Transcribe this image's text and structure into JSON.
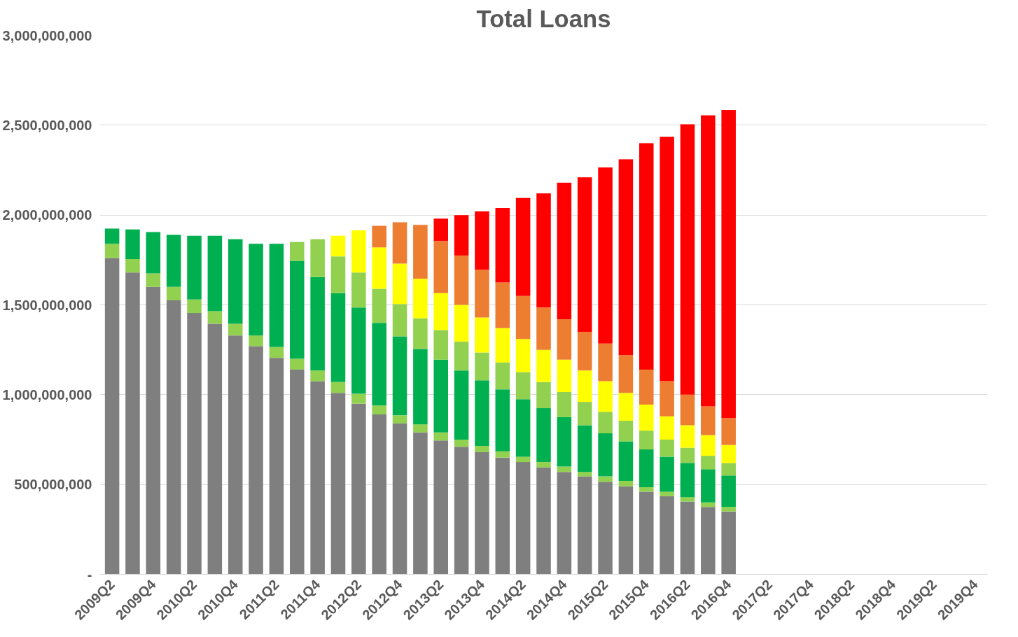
{
  "chart_data": {
    "type": "bar",
    "title": "Total Loans",
    "stacked": true,
    "grid": "y",
    "categories": [
      "2009Q2",
      null,
      "2009Q4",
      null,
      "2010Q2",
      null,
      "2010Q4",
      null,
      "2011Q2",
      null,
      "2011Q4",
      null,
      "2012Q2",
      null,
      "2012Q4",
      null,
      "2013Q2",
      null,
      "2013Q4",
      null,
      "2014Q2",
      null,
      "2014Q4",
      null,
      "2015Q2",
      null,
      "2015Q4",
      null,
      "2016Q2",
      null,
      "2016Q4",
      null,
      "2017Q2",
      null,
      "2017Q4",
      null,
      "2018Q2",
      null,
      "2018Q4",
      null,
      "2019Q2",
      null,
      "2019Q4"
    ],
    "ylim": [
      0,
      3000000000
    ],
    "yticks": [
      {
        "value": 0,
        "label": "-"
      },
      {
        "value": 500000000,
        "label": "500,000,000"
      },
      {
        "value": 1000000000,
        "label": "1,000,000,000"
      },
      {
        "value": 1500000000,
        "label": "1,500,000,000"
      },
      {
        "value": 2000000000,
        "label": "2,000,000,000"
      },
      {
        "value": 2500000000,
        "label": "2,500,000,000"
      },
      {
        "value": 3000000000,
        "label": "3,000,000,000"
      }
    ],
    "series": [
      {
        "color": "#7f7f7f",
        "values": [
          1760000000,
          1680000000,
          1600000000,
          1525000000,
          1455000000,
          1395000000,
          1330000000,
          1270000000,
          1205000000,
          1140000000,
          1075000000,
          1010000000,
          950000000,
          890000000,
          840000000,
          790000000,
          745000000,
          710000000,
          680000000,
          650000000,
          625000000,
          595000000,
          570000000,
          545000000,
          515000000,
          490000000,
          460000000,
          435000000,
          405000000,
          375000000,
          350000000,
          null,
          null,
          null,
          null,
          null,
          null,
          null,
          null,
          null,
          null,
          null,
          null
        ]
      },
      {
        "color": "#92d050",
        "values": [
          80000000,
          75000000,
          75000000,
          75000000,
          75000000,
          70000000,
          65000000,
          60000000,
          60000000,
          60000000,
          60000000,
          60000000,
          55000000,
          50000000,
          45000000,
          45000000,
          45000000,
          40000000,
          35000000,
          35000000,
          30000000,
          30000000,
          30000000,
          25000000,
          30000000,
          30000000,
          25000000,
          25000000,
          25000000,
          25000000,
          25000000,
          null,
          null,
          null,
          null,
          null,
          null,
          null,
          null,
          null,
          null,
          null,
          null
        ]
      },
      {
        "color": "#00b050",
        "values": [
          85000000,
          165000000,
          230000000,
          290000000,
          355000000,
          420000000,
          470000000,
          510000000,
          575000000,
          545000000,
          520000000,
          495000000,
          480000000,
          460000000,
          440000000,
          420000000,
          405000000,
          385000000,
          365000000,
          345000000,
          320000000,
          300000000,
          275000000,
          260000000,
          240000000,
          220000000,
          210000000,
          195000000,
          190000000,
          185000000,
          175000000,
          null,
          null,
          null,
          null,
          null,
          null,
          null,
          null,
          null,
          null,
          null,
          null
        ]
      },
      {
        "color": "#92d050",
        "values": [
          null,
          null,
          null,
          null,
          null,
          null,
          null,
          null,
          null,
          105000000,
          210000000,
          205000000,
          195000000,
          190000000,
          180000000,
          170000000,
          165000000,
          160000000,
          155000000,
          150000000,
          150000000,
          145000000,
          140000000,
          130000000,
          120000000,
          115000000,
          105000000,
          95000000,
          85000000,
          75000000,
          70000000,
          null,
          null,
          null,
          null,
          null,
          null,
          null,
          null,
          null,
          null,
          null,
          null
        ]
      },
      {
        "color": "#ffff00",
        "values": [
          null,
          null,
          null,
          null,
          null,
          null,
          null,
          null,
          null,
          null,
          null,
          115000000,
          235000000,
          230000000,
          225000000,
          220000000,
          205000000,
          205000000,
          195000000,
          190000000,
          185000000,
          180000000,
          180000000,
          175000000,
          170000000,
          155000000,
          145000000,
          130000000,
          125000000,
          115000000,
          100000000,
          null,
          null,
          null,
          null,
          null,
          null,
          null,
          null,
          null,
          null,
          null,
          null
        ]
      },
      {
        "color": "#ed7d31",
        "values": [
          null,
          null,
          null,
          null,
          null,
          null,
          null,
          null,
          null,
          null,
          null,
          null,
          null,
          120000000,
          230000000,
          300000000,
          290000000,
          275000000,
          265000000,
          255000000,
          240000000,
          235000000,
          225000000,
          215000000,
          210000000,
          210000000,
          195000000,
          195000000,
          170000000,
          160000000,
          150000000,
          null,
          null,
          null,
          null,
          null,
          null,
          null,
          null,
          null,
          null,
          null,
          null
        ]
      },
      {
        "color": "#ff0000",
        "values": [
          null,
          null,
          null,
          null,
          null,
          null,
          null,
          null,
          null,
          null,
          null,
          null,
          null,
          null,
          null,
          null,
          125000000,
          225000000,
          325000000,
          415000000,
          545000000,
          635000000,
          760000000,
          860000000,
          980000000,
          1090000000,
          1260000000,
          1360000000,
          1505000000,
          1620000000,
          1715000000,
          null,
          null,
          null,
          null,
          null,
          null,
          null,
          null,
          null,
          null,
          null,
          null
        ]
      }
    ]
  }
}
